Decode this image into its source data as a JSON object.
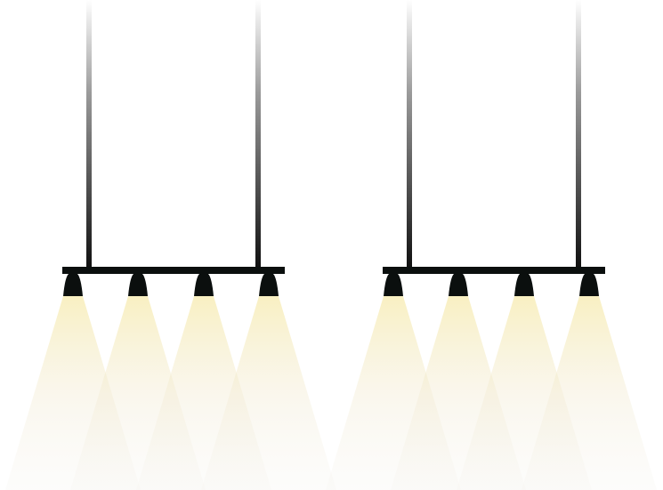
{
  "scene": {
    "background": "#ffffff",
    "fixture_color": "#0b0f0e",
    "light_color": "#f6e9a6",
    "fixtures": [
      {
        "name": "left-pendant-bar",
        "lamp_count": 4,
        "icon": "spotlight-icon"
      },
      {
        "name": "right-pendant-bar",
        "lamp_count": 4,
        "icon": "spotlight-icon"
      }
    ]
  }
}
